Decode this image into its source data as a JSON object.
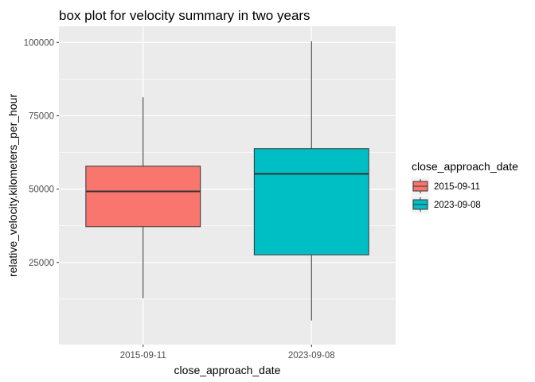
{
  "chart_data": {
    "type": "box",
    "title": "box plot for velocity summary in two years",
    "xlabel": "close_approach_date",
    "ylabel": "relative_velocity.kilometers_per_hour",
    "categories": [
      "2015-09-11",
      "2023-09-08"
    ],
    "series": [
      {
        "name": "2015-09-11",
        "color": "#F8766D",
        "min": 12800,
        "q1": 37200,
        "median": 49200,
        "q3": 57800,
        "max": 81300
      },
      {
        "name": "2023-09-08",
        "color": "#00BFC4",
        "min": 5200,
        "q1": 27600,
        "median": 55200,
        "q3": 63800,
        "max": 100400
      }
    ],
    "y_ticks": [
      25000,
      50000,
      75000,
      100000
    ],
    "y_tick_labels": [
      "25000",
      "50000",
      "75000",
      "100000"
    ],
    "ylim": [
      -3000,
      105500
    ],
    "grid": true,
    "legend": {
      "title": "close_approach_date",
      "position": "right",
      "entries": [
        "2015-09-11",
        "2023-09-08"
      ]
    },
    "colors": {
      "panel_background": "#EBEBEB",
      "grid_line": "#FFFFFF",
      "box_outline": "#333333"
    }
  }
}
